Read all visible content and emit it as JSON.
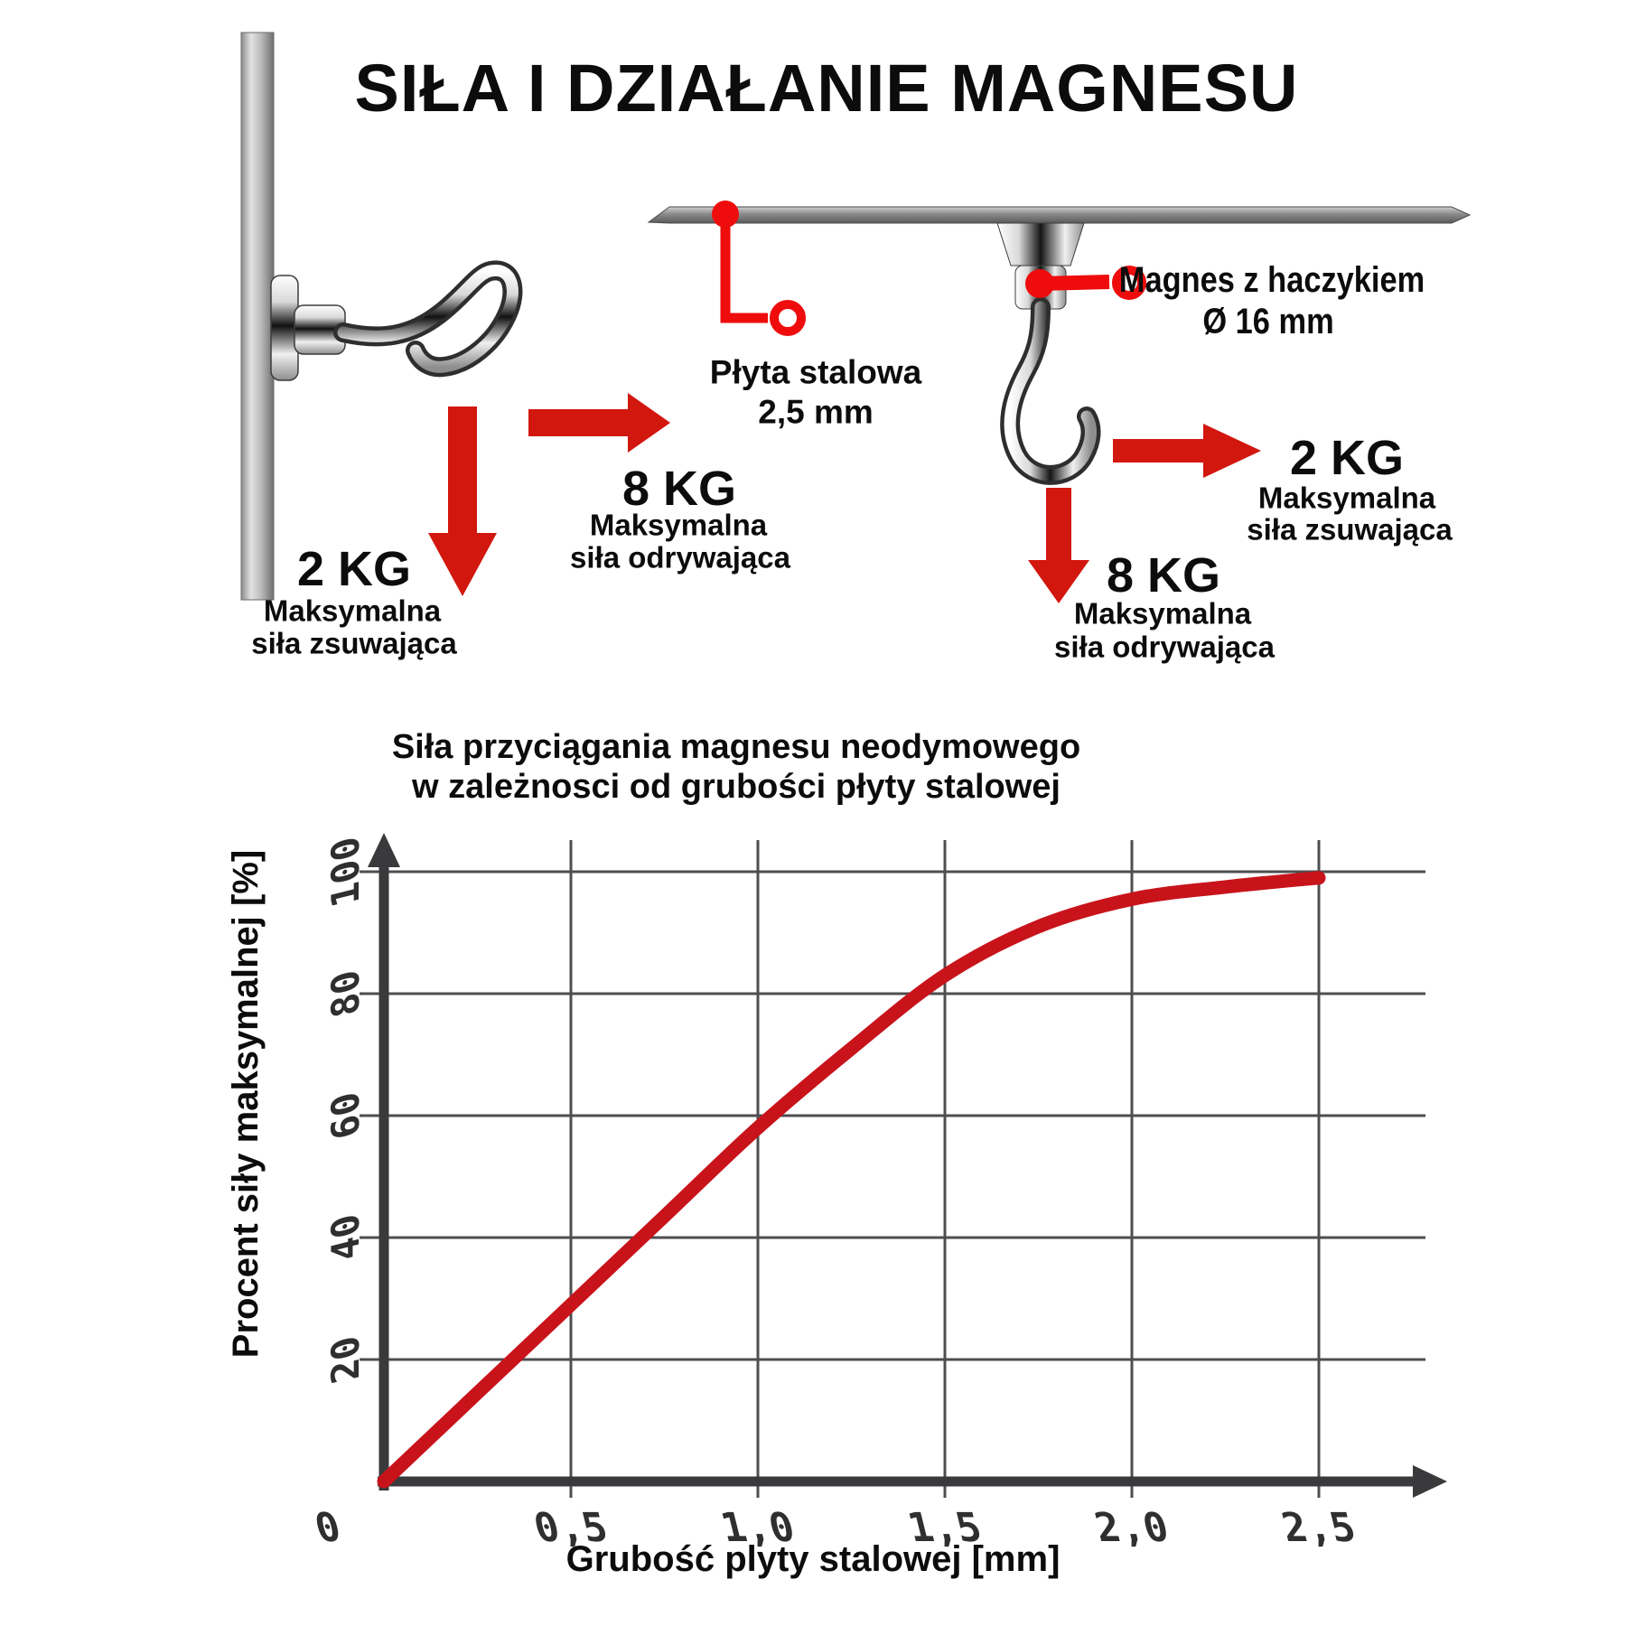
{
  "title": "SIŁA I DZIAŁANIE MAGNESU",
  "colors": {
    "red_arrow": "#d2170e",
    "red_callout": "#ee0c0c",
    "curve": "#c8131b",
    "axis": "#3a3a3c",
    "grid": "#4e4e50",
    "text": "#0c0c0c",
    "steel_mid": "#9a9a9a"
  },
  "wall": {
    "slide_force": {
      "value": "2 KG",
      "label1": "Maksymalna",
      "label2": "siła zsuwająca"
    },
    "pull_force": {
      "value": "8 KG",
      "label1": "Maksymalna",
      "label2": "siła odrywająca"
    },
    "plate_label": {
      "line1": "Płyta stalowa",
      "line2": "2,5 mm"
    }
  },
  "ceiling": {
    "magnet_label": {
      "line1": "Magnes z haczykiem",
      "line2": "Ø 16 mm"
    },
    "slide_force": {
      "value": "2 KG",
      "label1": "Maksymalna",
      "label2": "siła zsuwająca"
    },
    "pull_force": {
      "value": "8 KG",
      "label1": "Maksymalna",
      "label2": "siła odrywająca"
    }
  },
  "chart_data": {
    "type": "line",
    "title_line1": "Siła przyciągania magnesu neodymowego",
    "title_line2": "w zależnosci od grubości płyty stalowej",
    "xlabel": "Grubość plyty stalowej [mm]",
    "ylabel": "Procent siły maksymalnej [%]",
    "x_ticks": [
      "0",
      "0,5",
      "1,0",
      "1,5",
      "2,0",
      "2,5"
    ],
    "y_ticks": [
      "20",
      "40",
      "60",
      "80",
      "100"
    ],
    "xlim": [
      0,
      2.5
    ],
    "ylim": [
      0,
      100
    ],
    "grid": true,
    "legend": false,
    "series": [
      {
        "name": "Siła przyciągania",
        "color": "#c8131b",
        "points": [
          [
            0,
            0
          ],
          [
            0.25,
            14.5
          ],
          [
            0.5,
            29
          ],
          [
            0.75,
            43.5
          ],
          [
            1.0,
            58
          ],
          [
            1.25,
            71
          ],
          [
            1.5,
            83
          ],
          [
            1.75,
            91
          ],
          [
            2.0,
            95.5
          ],
          [
            2.25,
            97.5
          ],
          [
            2.5,
            99
          ]
        ]
      }
    ]
  }
}
